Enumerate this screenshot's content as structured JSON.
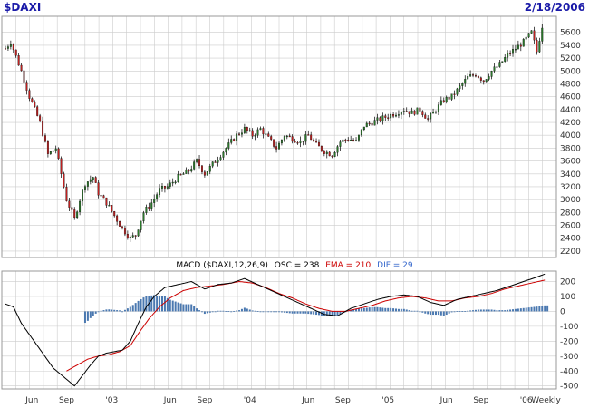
{
  "header": {
    "symbol": "$DAXI",
    "date": "2/18/2006"
  },
  "colors": {
    "bg": "#ffffff",
    "grid": "#cccccc",
    "frame": "#999999",
    "header_text": "#1a1aa8",
    "up_candle": "#2a7a2a",
    "down_candle": "#c02020",
    "wick": "#000000",
    "macd_line": "#000000",
    "ema_line": "#cc0000",
    "histogram": "#4a78b0",
    "osc_text": "#000000",
    "ema_text": "#cc0000",
    "dif_text": "#3366cc"
  },
  "macd_label": {
    "prefix": "MACD ($DAXI,12,26,9)",
    "osc_label": "OSC = 238",
    "ema_label": "EMA = 210",
    "dif_label": "DIF = 29"
  },
  "chart_data": [
    {
      "type": "candlestick",
      "name": "price",
      "ylim": [
        2100,
        5850
      ],
      "yticks": [
        2200,
        2400,
        2600,
        2800,
        3000,
        3200,
        3400,
        3600,
        3800,
        4000,
        4200,
        4400,
        4600,
        4800,
        5000,
        5200,
        5400,
        5600
      ],
      "xlim": [
        0,
        206
      ],
      "x_ticks": [
        {
          "x": 10,
          "label": "Jun"
        },
        {
          "x": 23,
          "label": "Sep"
        },
        {
          "x": 40,
          "label": "'03"
        },
        {
          "x": 62,
          "label": "Jun"
        },
        {
          "x": 75,
          "label": "Sep"
        },
        {
          "x": 92,
          "label": "'04"
        },
        {
          "x": 114,
          "label": "Jun"
        },
        {
          "x": 127,
          "label": "Sep"
        },
        {
          "x": 144,
          "label": "'05"
        },
        {
          "x": 166,
          "label": "Jun"
        },
        {
          "x": 179,
          "label": "Sep"
        },
        {
          "x": 196,
          "label": "'06"
        },
        {
          "x": 209,
          "label": "Weekly"
        }
      ],
      "anchors": [
        [
          0,
          5350
        ],
        [
          2,
          5450
        ],
        [
          6,
          5000
        ],
        [
          9,
          4600
        ],
        [
          13,
          4200
        ],
        [
          16,
          3700
        ],
        [
          19,
          3800
        ],
        [
          23,
          3000
        ],
        [
          26,
          2700
        ],
        [
          28,
          3000
        ],
        [
          30,
          3250
        ],
        [
          33,
          3350
        ],
        [
          35,
          3100
        ],
        [
          38,
          2950
        ],
        [
          41,
          2750
        ],
        [
          44,
          2550
        ],
        [
          47,
          2400
        ],
        [
          49,
          2450
        ],
        [
          52,
          2800
        ],
        [
          55,
          2950
        ],
        [
          58,
          3150
        ],
        [
          61,
          3200
        ],
        [
          65,
          3350
        ],
        [
          69,
          3450
        ],
        [
          72,
          3600
        ],
        [
          75,
          3400
        ],
        [
          78,
          3550
        ],
        [
          81,
          3700
        ],
        [
          84,
          3850
        ],
        [
          87,
          4000
        ],
        [
          90,
          4100
        ],
        [
          93,
          4000
        ],
        [
          96,
          4100
        ],
        [
          99,
          3950
        ],
        [
          102,
          3800
        ],
        [
          105,
          4000
        ],
        [
          108,
          3950
        ],
        [
          111,
          3900
        ],
        [
          114,
          4000
        ],
        [
          117,
          3850
        ],
        [
          120,
          3750
        ],
        [
          123,
          3700
        ],
        [
          126,
          3900
        ],
        [
          129,
          3950
        ],
        [
          132,
          3900
        ],
        [
          135,
          4150
        ],
        [
          138,
          4200
        ],
        [
          141,
          4250
        ],
        [
          144,
          4300
        ],
        [
          147,
          4350
        ],
        [
          150,
          4400
        ],
        [
          153,
          4350
        ],
        [
          156,
          4400
        ],
        [
          159,
          4250
        ],
        [
          162,
          4400
        ],
        [
          165,
          4550
        ],
        [
          168,
          4600
        ],
        [
          171,
          4750
        ],
        [
          174,
          4900
        ],
        [
          177,
          4950
        ],
        [
          180,
          4850
        ],
        [
          183,
          5000
        ],
        [
          186,
          5100
        ],
        [
          189,
          5250
        ],
        [
          192,
          5350
        ],
        [
          195,
          5450
        ],
        [
          198,
          5600
        ],
        [
          200,
          5300
        ],
        [
          202,
          5700
        ]
      ]
    },
    {
      "type": "macd",
      "name": "MACD",
      "ylim": [
        -520,
        270
      ],
      "yticks": [
        200,
        100,
        0,
        -100,
        -200,
        -300,
        -400,
        -500
      ],
      "macd_anchors": [
        [
          0,
          50
        ],
        [
          3,
          30
        ],
        [
          6,
          -80
        ],
        [
          10,
          -180
        ],
        [
          14,
          -280
        ],
        [
          18,
          -380
        ],
        [
          22,
          -440
        ],
        [
          26,
          -500
        ],
        [
          29,
          -430
        ],
        [
          32,
          -360
        ],
        [
          35,
          -300
        ],
        [
          38,
          -280
        ],
        [
          41,
          -270
        ],
        [
          44,
          -260
        ],
        [
          47,
          -200
        ],
        [
          50,
          -80
        ],
        [
          53,
          30
        ],
        [
          56,
          100
        ],
        [
          60,
          160
        ],
        [
          65,
          180
        ],
        [
          70,
          200
        ],
        [
          75,
          150
        ],
        [
          80,
          180
        ],
        [
          85,
          190
        ],
        [
          90,
          220
        ],
        [
          95,
          180
        ],
        [
          100,
          140
        ],
        [
          105,
          100
        ],
        [
          110,
          60
        ],
        [
          115,
          20
        ],
        [
          120,
          -20
        ],
        [
          125,
          -30
        ],
        [
          130,
          20
        ],
        [
          135,
          50
        ],
        [
          140,
          80
        ],
        [
          145,
          100
        ],
        [
          150,
          110
        ],
        [
          155,
          100
        ],
        [
          160,
          60
        ],
        [
          165,
          40
        ],
        [
          170,
          80
        ],
        [
          175,
          100
        ],
        [
          180,
          120
        ],
        [
          185,
          140
        ],
        [
          190,
          170
        ],
        [
          195,
          200
        ],
        [
          200,
          230
        ],
        [
          203,
          250
        ]
      ],
      "ema_anchors": [
        [
          23,
          -400
        ],
        [
          27,
          -360
        ],
        [
          31,
          -320
        ],
        [
          35,
          -300
        ],
        [
          39,
          -290
        ],
        [
          43,
          -270
        ],
        [
          47,
          -230
        ],
        [
          50,
          -150
        ],
        [
          54,
          -50
        ],
        [
          58,
          30
        ],
        [
          62,
          90
        ],
        [
          67,
          140
        ],
        [
          72,
          160
        ],
        [
          77,
          170
        ],
        [
          82,
          180
        ],
        [
          88,
          200
        ],
        [
          93,
          190
        ],
        [
          98,
          160
        ],
        [
          103,
          120
        ],
        [
          108,
          90
        ],
        [
          113,
          50
        ],
        [
          118,
          20
        ],
        [
          123,
          0
        ],
        [
          128,
          0
        ],
        [
          133,
          20
        ],
        [
          138,
          40
        ],
        [
          143,
          70
        ],
        [
          148,
          90
        ],
        [
          153,
          100
        ],
        [
          158,
          90
        ],
        [
          163,
          70
        ],
        [
          168,
          70
        ],
        [
          173,
          90
        ],
        [
          178,
          100
        ],
        [
          183,
          120
        ],
        [
          188,
          150
        ],
        [
          193,
          170
        ],
        [
          198,
          190
        ],
        [
          203,
          210
        ]
      ],
      "histogram_range": [
        30,
        204
      ]
    }
  ]
}
